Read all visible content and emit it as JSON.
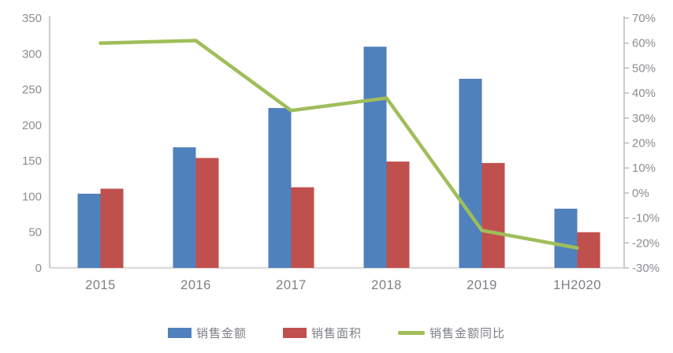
{
  "chart_data": {
    "type": "bar+line combo",
    "categories": [
      "2015",
      "2016",
      "2017",
      "2018",
      "2019",
      "1H2020"
    ],
    "series": [
      {
        "name": "销售金额",
        "type": "bar",
        "axis": "left",
        "color": "#4f81bd",
        "values": [
          104,
          169,
          224,
          310,
          265,
          83
        ]
      },
      {
        "name": "销售面积",
        "type": "bar",
        "axis": "left",
        "color": "#c0504d",
        "values": [
          111,
          154,
          113,
          149,
          147,
          50
        ]
      },
      {
        "name": "销售金额同比",
        "type": "line",
        "axis": "right",
        "color": "#9fbe5a",
        "values": [
          60,
          61,
          33,
          38,
          -15,
          -22
        ],
        "unit": "%"
      }
    ],
    "left_axis": {
      "min": 0,
      "max": 350,
      "step": 50,
      "ticks": [
        "0",
        "50",
        "100",
        "150",
        "200",
        "250",
        "300",
        "350"
      ]
    },
    "right_axis": {
      "min": -30,
      "max": 70,
      "step": 10,
      "ticks": [
        "-30%",
        "-20%",
        "-10%",
        "0%",
        "10%",
        "20%",
        "30%",
        "40%",
        "50%",
        "60%",
        "70%"
      ]
    },
    "title": "",
    "legend_position": "bottom",
    "grid": false
  },
  "style": {
    "axis_line_color": "#b8bbbe",
    "baseline_color": "#dcdcdc",
    "tick_text_color": "#8a8d91",
    "category_text_color": "#7d8084"
  }
}
